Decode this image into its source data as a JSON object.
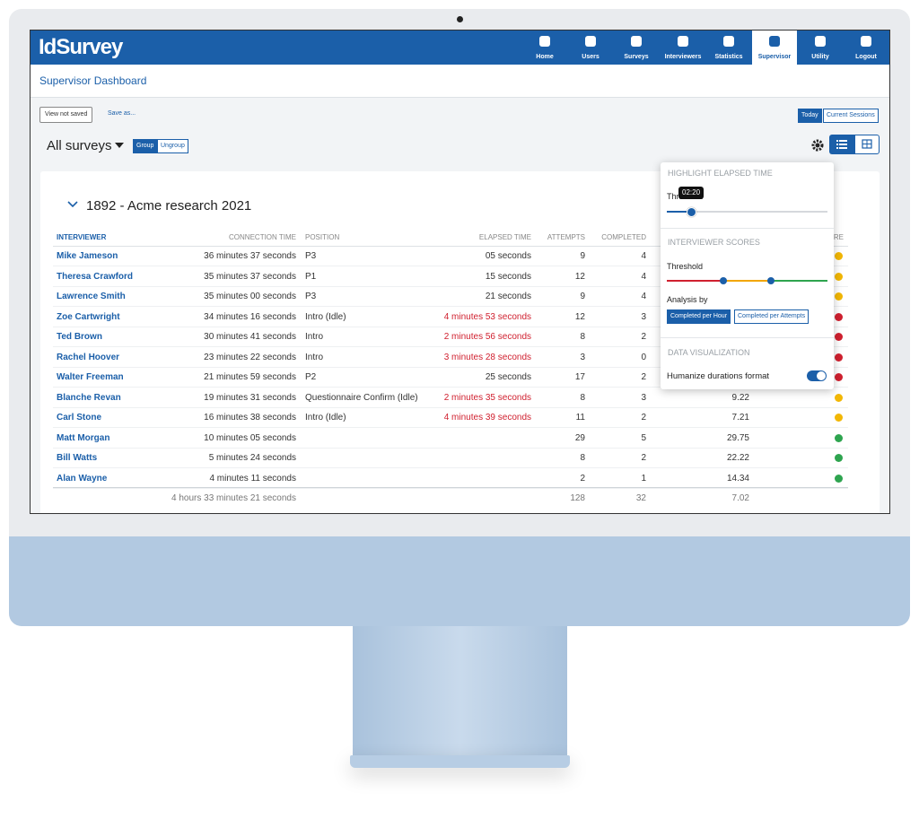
{
  "logo": "IdSurvey",
  "nav": [
    {
      "label": "Home"
    },
    {
      "label": "Users"
    },
    {
      "label": "Surveys"
    },
    {
      "label": "Interviewers"
    },
    {
      "label": "Statistics"
    },
    {
      "label": "Supervisor",
      "active": true
    },
    {
      "label": "Utility"
    },
    {
      "label": "Logout"
    }
  ],
  "page_title": "Supervisor Dashboard",
  "toolbar": {
    "view_state": "View not saved",
    "save_as": "Save as...",
    "today": "Today",
    "current_sessions": "Current Sessions"
  },
  "filter": {
    "surveys": "All surveys",
    "group": "Group",
    "ungroup": "Ungroup"
  },
  "survey": {
    "title": "1892 - Acme research 2021",
    "headers": {
      "interviewer": "Interviewer",
      "connection_time": "Connection time",
      "position": "Position",
      "elapsed_time": "Elapsed time",
      "attempts": "Attempts",
      "completed": "Completed",
      "score": "CORE"
    },
    "rows": [
      {
        "interviewer": "Mike Jameson",
        "connection_time": "36 minutes 37 seconds",
        "position": "P3",
        "elapsed_time": "05 seconds",
        "attempts": 9,
        "completed": 4,
        "score": "#f2b705"
      },
      {
        "interviewer": "Theresa Crawford",
        "connection_time": "35 minutes 37 seconds",
        "position": "P1",
        "elapsed_time": "15 seconds",
        "attempts": 12,
        "completed": 4,
        "score": "#f2b705"
      },
      {
        "interviewer": "Lawrence Smith",
        "connection_time": "35 minutes 00 seconds",
        "position": "P3",
        "elapsed_time": "21 seconds",
        "attempts": 9,
        "completed": 4,
        "score": "#f2b705"
      },
      {
        "interviewer": "Zoe Cartwright",
        "connection_time": "34 minutes 16 seconds",
        "position": "Intro (Idle)",
        "elapsed_time": "4 minutes 53 seconds",
        "highlight": true,
        "attempts": 12,
        "completed": 3,
        "score": "#d0202f"
      },
      {
        "interviewer": "Ted Brown",
        "connection_time": "30 minutes 41 seconds",
        "position": "Intro",
        "elapsed_time": "2 minutes 56 seconds",
        "highlight": true,
        "attempts": 8,
        "completed": 2,
        "score": "#d0202f"
      },
      {
        "interviewer": "Rachel Hoover",
        "connection_time": "23 minutes 22 seconds",
        "position": "Intro",
        "elapsed_time": "3 minutes 28 seconds",
        "highlight": true,
        "attempts": 3,
        "completed": 0,
        "score": "#d0202f"
      },
      {
        "interviewer": "Walter Freeman",
        "connection_time": "21 minutes 59 seconds",
        "position": "P2",
        "elapsed_time": "25 seconds",
        "attempts": 17,
        "completed": 2,
        "score": "#d0202f"
      },
      {
        "interviewer": "Blanche Revan",
        "connection_time": "19 minutes 31 seconds",
        "position": "Questionnaire Confirm (Idle)",
        "elapsed_time": "2 minutes 35 seconds",
        "highlight": true,
        "attempts": 8,
        "completed": 3,
        "rate": 9.22,
        "score": "#f2b705"
      },
      {
        "interviewer": "Carl Stone",
        "connection_time": "16 minutes 38 seconds",
        "position": "Intro (Idle)",
        "elapsed_time": "4 minutes 39 seconds",
        "highlight": true,
        "attempts": 11,
        "completed": 2,
        "rate": 7.21,
        "score": "#f2b705"
      },
      {
        "interviewer": "Matt Morgan",
        "connection_time": "10 minutes 05 seconds",
        "attempts": 29,
        "completed": 5,
        "rate": 29.75,
        "score": "#2ea44f"
      },
      {
        "interviewer": "Bill Watts",
        "connection_time": "5 minutes 24 seconds",
        "attempts": 8,
        "completed": 2,
        "rate": 22.22,
        "score": "#2ea44f"
      },
      {
        "interviewer": "Alan Wayne",
        "connection_time": "4 minutes 11 seconds",
        "attempts": 2,
        "completed": 1,
        "rate": 14.34,
        "score": "#2ea44f"
      }
    ],
    "totals": {
      "connection_time": "4 hours 33 minutes 21 seconds",
      "attempts": 128,
      "completed": 32,
      "rate": 7.02
    }
  },
  "settings_popup": {
    "highlight_title": "Highlight elapsed time",
    "threshold_label": "Threshold",
    "threshold_tooltip": "02:20",
    "scores_title": "Interviewer scores",
    "scores_threshold_label": "Threshold",
    "analysis_label": "Analysis by",
    "analysis_options": [
      "Completed per Hour",
      "Completed per Attempts"
    ],
    "visualization_title": "Data visualization",
    "humanize_label": "Humanize durations format"
  }
}
